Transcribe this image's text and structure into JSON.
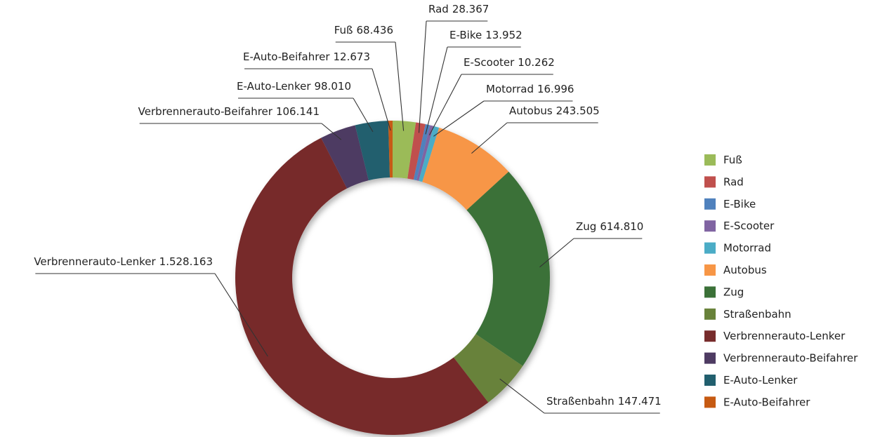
{
  "chart_data": {
    "type": "donut",
    "categories": [
      "Fuß",
      "Rad",
      "E-Bike",
      "E-Scooter",
      "Motorrad",
      "Autobus",
      "Zug",
      "Straßenbahn",
      "Verbrennerauto-Lenker",
      "Verbrennerauto-Beifahrer",
      "E-Auto-Lenker",
      "E-Auto-Beifahrer"
    ],
    "values": [
      68436,
      28367,
      13952,
      10262,
      16996,
      243505,
      614810,
      147471,
      1528163,
      106141,
      98010,
      12673
    ],
    "value_labels": [
      "68.436",
      "28.367",
      "13.952",
      "10.262",
      "16.996",
      "243.505",
      "614.810",
      "147.471",
      "1.528.163",
      "106.141",
      "98.010",
      "12.673"
    ],
    "colors": [
      "#9bbb59",
      "#c0504d",
      "#4f81bd",
      "#8064a2",
      "#4bacc6",
      "#f79646",
      "#3b7138",
      "#68823a",
      "#772c2c",
      "#4e3b62",
      "#215f6e",
      "#c65a12"
    ],
    "legend": "right"
  }
}
